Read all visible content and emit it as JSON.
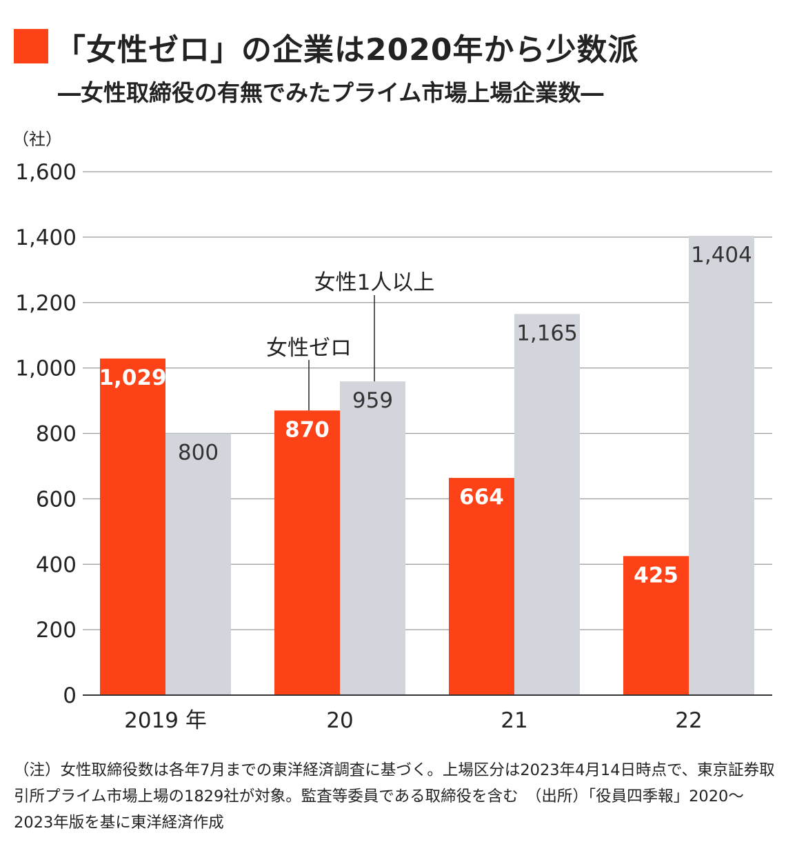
{
  "title": "「女性ゼロ」の企業は2020年から少数派",
  "subtitle": "―女性取締役の有無でみたプライム市場上場企業数―",
  "colors": {
    "female_zero": "#fc4216",
    "one_or_more": "#d2d6dc",
    "grid": "#999999"
  },
  "chart_data": {
    "type": "bar",
    "ylabel": "（社）",
    "ylim": [
      0,
      1600
    ],
    "yticks": [
      0,
      200,
      400,
      600,
      800,
      1000,
      1200,
      1400,
      1600
    ],
    "ytick_labels": [
      "0",
      "200",
      "400",
      "600",
      "800",
      "1,000",
      "1,200",
      "1,400",
      "1,600"
    ],
    "grid": true,
    "categories": [
      "2019 年",
      "20",
      "21",
      "22"
    ],
    "series": [
      {
        "name": "女性ゼロ",
        "values": [
          1029,
          870,
          664,
          425
        ],
        "labels": [
          "1,029",
          "870",
          "664",
          "425"
        ]
      },
      {
        "name": "女性1人以上",
        "values": [
          800,
          959,
          1165,
          1404
        ],
        "labels": [
          "800",
          "959",
          "1,165",
          "1,404"
        ]
      }
    ]
  },
  "note": "（注）女性取締役数は各年7月までの東洋経済調査に基づく。上場区分は2023年4月14日時点で、東京証券取引所プライム市場上場の1829社が対象。監査等委員である取締役を含む　（出所）「役員四季報」2020～2023年版を基に東洋経済作成"
}
